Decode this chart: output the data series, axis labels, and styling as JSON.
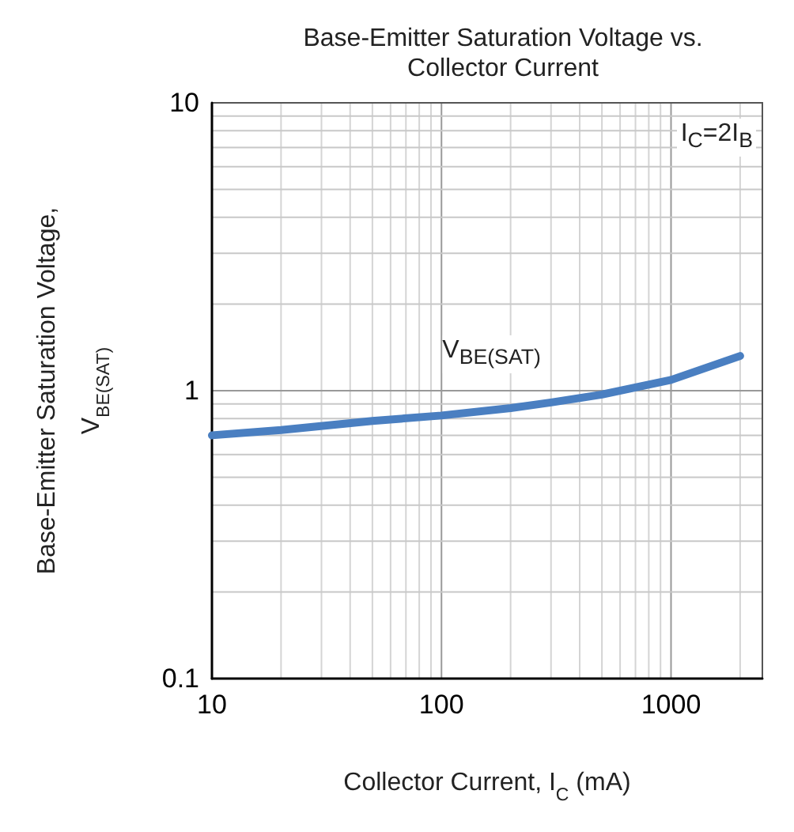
{
  "chart_data": {
    "type": "line",
    "title": "Base-Emitter Saturation Voltage vs.\nCollector Current",
    "xlabel": "Collector Current, I$_{C}$ (mA)",
    "ylabel": "Base-Emitter Saturation Voltage,\nV$_{BE(SAT)}$",
    "annotations": [
      "I$_{C}$=2I$_{B}$"
    ],
    "log": "xy",
    "grid": true,
    "legend": false,
    "marker": "none",
    "line_style": "solid",
    "xlim": [
      10,
      2500
    ],
    "ylim": [
      0.1,
      10
    ],
    "xticks": [
      10,
      100,
      1000
    ],
    "yticks": [
      0.1,
      1,
      10
    ],
    "x": [
      10,
      20,
      50,
      100,
      200,
      300,
      500,
      1000,
      2000
    ],
    "series": [
      {
        "name": "V$_{BE(SAT)}$",
        "color": "#4a7fc1",
        "values": [
          0.7,
          0.73,
          0.785,
          0.82,
          0.87,
          0.91,
          0.97,
          1.09,
          1.32
        ]
      }
    ]
  }
}
